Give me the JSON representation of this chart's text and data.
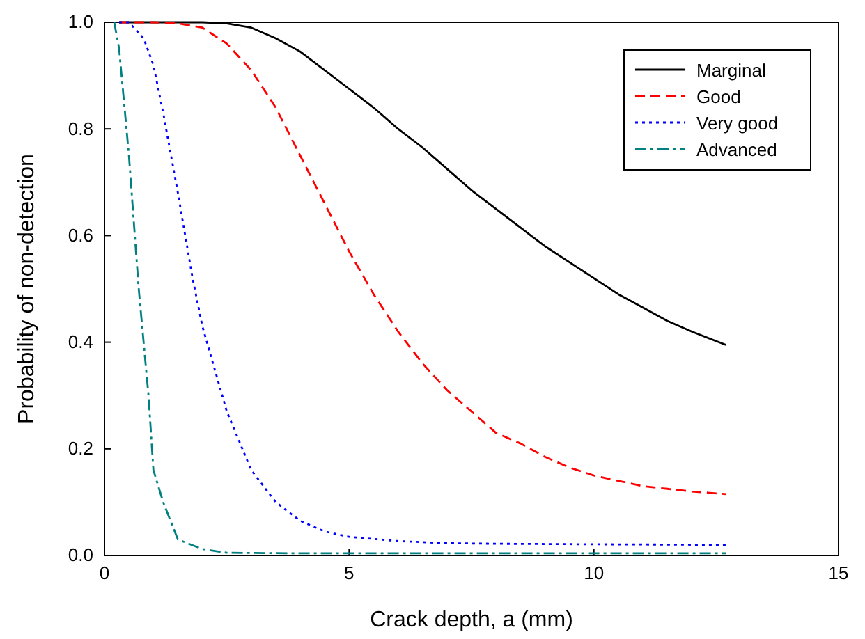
{
  "chart_data": {
    "type": "line",
    "xlabel": "Crack depth, a (mm)",
    "ylabel": "Probability of non-detection",
    "xlim": [
      0,
      15
    ],
    "xticks": [
      0,
      5,
      10,
      15
    ],
    "ylim": [
      0,
      1
    ],
    "yticks": [
      {
        "value": 0,
        "label": "0.0"
      },
      {
        "value": 0.2,
        "label": "0.2"
      },
      {
        "value": 0.4,
        "label": "0.4"
      },
      {
        "value": 0.6,
        "label": "0.6"
      },
      {
        "value": 0.8,
        "label": "0.8"
      },
      {
        "value": 1,
        "label": "1.0"
      }
    ],
    "grid": false,
    "legend": "top right",
    "marker": "none",
    "series": [
      {
        "name": "Marginal",
        "color": "#000000",
        "line_style": "solid",
        "x": [
          0.3,
          1,
          2,
          2.5,
          3,
          3.5,
          4,
          4.5,
          5,
          5.5,
          6,
          6.5,
          7,
          7.5,
          8,
          8.5,
          9,
          9.5,
          10,
          10.5,
          11,
          11.5,
          12,
          12.7
        ],
        "values": [
          1,
          1,
          1,
          0.998,
          0.99,
          0.97,
          0.945,
          0.91,
          0.875,
          0.84,
          0.8,
          0.765,
          0.725,
          0.685,
          0.65,
          0.615,
          0.58,
          0.55,
          0.52,
          0.49,
          0.465,
          0.44,
          0.42,
          0.395
        ]
      },
      {
        "name": "Good",
        "color": "#ff0000",
        "line_style": "dashed",
        "x": [
          0.3,
          1,
          1.5,
          2,
          2.5,
          3,
          3.5,
          4,
          4.5,
          5,
          5.5,
          6,
          6.5,
          7,
          7.5,
          8,
          8.5,
          9,
          9.5,
          10,
          10.5,
          11,
          11.5,
          12,
          12.7
        ],
        "values": [
          1,
          1,
          0.998,
          0.99,
          0.96,
          0.91,
          0.84,
          0.75,
          0.66,
          0.57,
          0.49,
          0.42,
          0.36,
          0.31,
          0.27,
          0.23,
          0.21,
          0.185,
          0.165,
          0.15,
          0.14,
          0.13,
          0.125,
          0.12,
          0.115
        ]
      },
      {
        "name": "Very good",
        "color": "#0000ff",
        "line_style": "dotted",
        "x": [
          0.3,
          0.5,
          0.8,
          1,
          1.2,
          1.5,
          1.8,
          2,
          2.5,
          3,
          3.5,
          4,
          4.5,
          5,
          6,
          7,
          8,
          10,
          12.7
        ],
        "values": [
          1,
          1,
          0.97,
          0.92,
          0.83,
          0.68,
          0.52,
          0.43,
          0.27,
          0.16,
          0.1,
          0.065,
          0.045,
          0.035,
          0.027,
          0.023,
          0.022,
          0.021,
          0.02
        ]
      },
      {
        "name": "Advanced",
        "color": "#008080",
        "line_style": "dashdot",
        "x": [
          0.2,
          0.3,
          0.5,
          0.7,
          0.9,
          1,
          1.2,
          1.5,
          2,
          2.5,
          4,
          12.7
        ],
        "values": [
          1,
          0.95,
          0.75,
          0.5,
          0.3,
          0.16,
          0.1,
          0.03,
          0.012,
          0.005,
          0.004,
          0.004
        ]
      }
    ]
  }
}
